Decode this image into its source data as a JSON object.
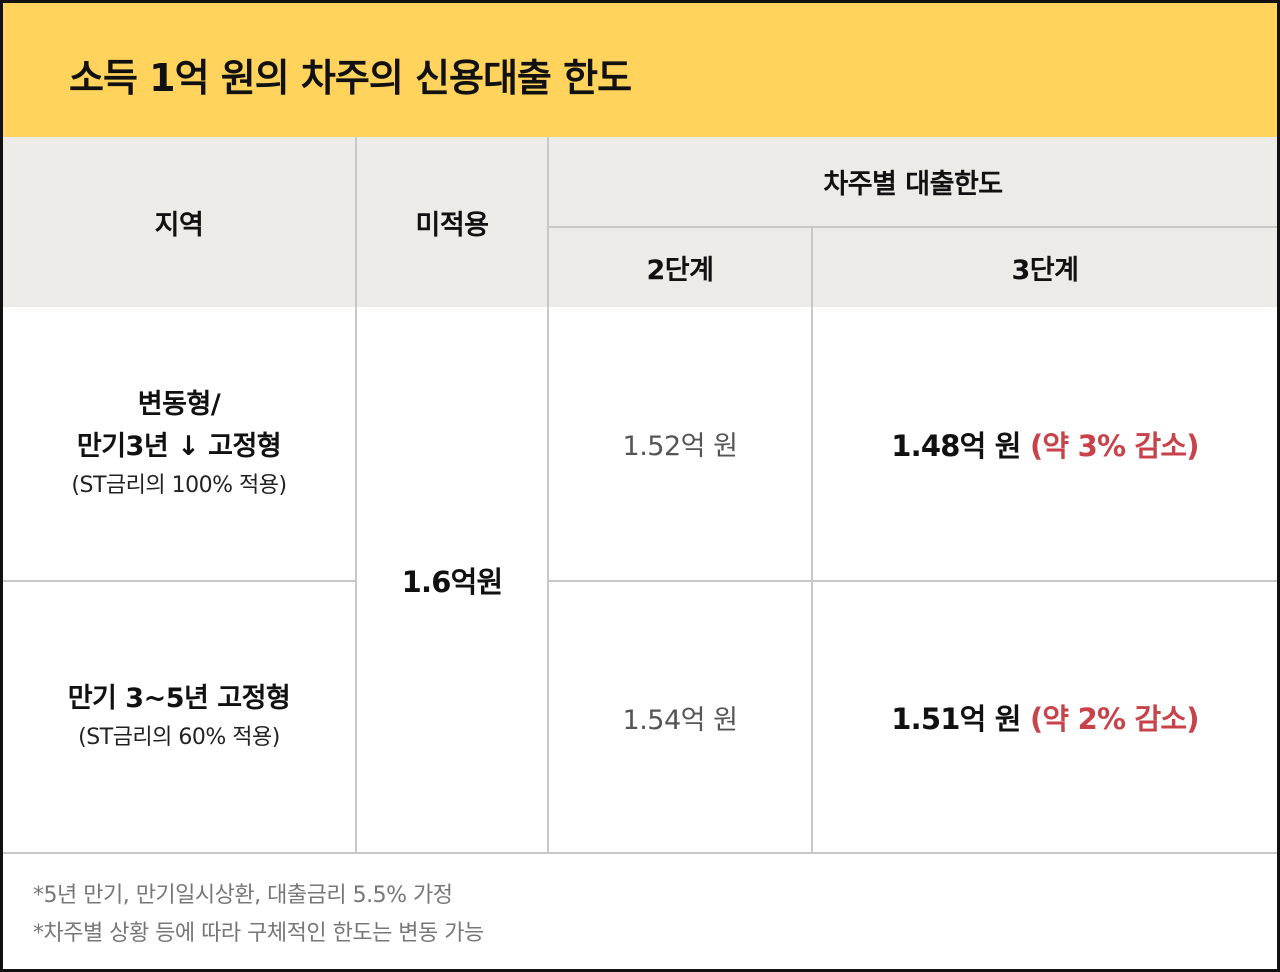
{
  "title": "소득 1억 원의 차주의 신용대출 한도",
  "headers": {
    "region": "지역",
    "not_applied": "미적용",
    "by_borrower": "차주별 대출한도",
    "stage2": "2단계",
    "stage3": "3단계"
  },
  "rows": [
    {
      "region_line1": "변동형/",
      "region_line2": "만기3년 ↓ 고정형",
      "region_sub": "(ST금리의 100% 적용)",
      "stage2": "1.52억 원",
      "stage3_value": "1.48억 원",
      "stage3_change": "(약 3% 감소)"
    },
    {
      "region_line1": "만기 3~5년 고정형",
      "region_sub": "(ST금리의 60% 적용)",
      "stage2": "1.54억 원",
      "stage3_value": "1.51억 원",
      "stage3_change": "(약 2% 감소)"
    }
  ],
  "not_applied_value": "1.6억원",
  "footnotes": [
    "*5년 만기, 만기일시상환, 대출금리 5.5% 가정",
    "*차주별 상황 등에 따라 구체적인 한도는 변동 가능"
  ],
  "colors": {
    "title_bg": "#FFD35C",
    "header_bg": "#ECEBE7",
    "decrease_text": "#C8424A"
  }
}
